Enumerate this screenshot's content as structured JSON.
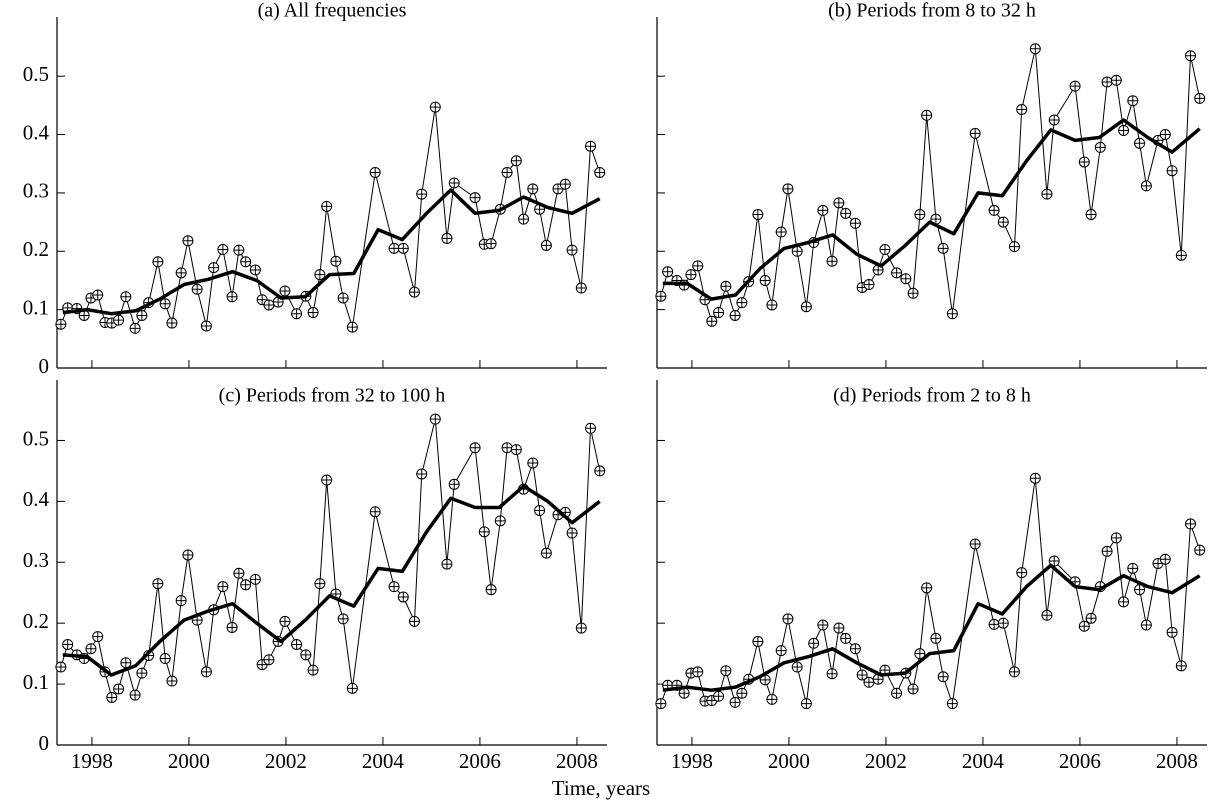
{
  "xlabel": "Time, years",
  "chart_data": [
    {
      "type": "line",
      "title": "(a) All frequencies",
      "xlim": [
        1997.28,
        2008.62
      ],
      "ylim": [
        0,
        0.55
      ],
      "xticks": [
        1998,
        2000,
        2002,
        2004,
        2006,
        2008
      ],
      "yticks": [
        0,
        0.1,
        0.2,
        0.3,
        0.4,
        0.5
      ],
      "xtick_labels": false,
      "ytick_labels": true,
      "series": [
        {
          "style": "markers",
          "color": "#000000",
          "x": [
            1997.36,
            1997.5,
            1997.69,
            1997.84,
            1997.98,
            1998.12,
            1998.27,
            1998.41,
            1998.55,
            1998.7,
            1998.89,
            1999.03,
            1999.17,
            1999.36,
            1999.51,
            1999.65,
            1999.84,
            1999.98,
            2000.17,
            2000.36,
            2000.51,
            2000.7,
            2000.89,
            2001.03,
            2001.17,
            2001.37,
            2001.51,
            2001.65,
            2001.84,
            2001.98,
            2002.22,
            2002.41,
            2002.56,
            2002.7,
            2002.84,
            2003.03,
            2003.18,
            2003.37,
            2003.84,
            2004.23,
            2004.42,
            2004.65,
            2004.8,
            2005.08,
            2005.32,
            2005.47,
            2005.9,
            2006.09,
            2006.23,
            2006.42,
            2006.56,
            2006.75,
            2006.9,
            2007.09,
            2007.23,
            2007.37,
            2007.61,
            2007.76,
            2007.9,
            2008.09,
            2008.28,
            2008.47
          ],
          "values": [
            0.075,
            0.103,
            0.102,
            0.09,
            0.12,
            0.125,
            0.078,
            0.077,
            0.082,
            0.122,
            0.068,
            0.09,
            0.112,
            0.182,
            0.11,
            0.077,
            0.163,
            0.218,
            0.135,
            0.072,
            0.172,
            0.203,
            0.122,
            0.202,
            0.182,
            0.168,
            0.117,
            0.108,
            0.113,
            0.132,
            0.093,
            0.123,
            0.095,
            0.16,
            0.277,
            0.183,
            0.12,
            0.07,
            0.335,
            0.205,
            0.205,
            0.13,
            0.298,
            0.447,
            0.222,
            0.317,
            0.292,
            0.212,
            0.213,
            0.272,
            0.335,
            0.355,
            0.255,
            0.307,
            0.272,
            0.21,
            0.307,
            0.315,
            0.202,
            0.137,
            0.38,
            0.335
          ]
        },
        {
          "style": "smooth",
          "color": "#000000",
          "x": [
            1997.4,
            1997.9,
            1998.4,
            1998.9,
            1999.4,
            1999.9,
            2000.4,
            2000.9,
            2001.4,
            2001.9,
            2002.4,
            2002.9,
            2003.4,
            2003.9,
            2004.4,
            2004.9,
            2005.4,
            2005.9,
            2006.4,
            2006.9,
            2007.4,
            2007.9,
            2008.47
          ],
          "values": [
            0.095,
            0.1,
            0.093,
            0.098,
            0.118,
            0.143,
            0.152,
            0.165,
            0.15,
            0.12,
            0.122,
            0.16,
            0.162,
            0.237,
            0.22,
            0.265,
            0.305,
            0.265,
            0.27,
            0.293,
            0.275,
            0.265,
            0.29
          ]
        }
      ]
    },
    {
      "type": "line",
      "title": "(b) Periods from 8 to 32 h",
      "xlim": [
        1997.28,
        2008.62
      ],
      "ylim": [
        0,
        0.55
      ],
      "xticks": [
        1998,
        2000,
        2002,
        2004,
        2006,
        2008
      ],
      "yticks": [
        0,
        0.1,
        0.2,
        0.3,
        0.4,
        0.5
      ],
      "xtick_labels": false,
      "ytick_labels": false,
      "series": [
        {
          "style": "markers",
          "color": "#000000",
          "x": [
            1997.36,
            1997.5,
            1997.69,
            1997.84,
            1997.98,
            1998.12,
            1998.27,
            1998.41,
            1998.55,
            1998.7,
            1998.89,
            1999.03,
            1999.17,
            1999.36,
            1999.51,
            1999.65,
            1999.84,
            1999.98,
            2000.17,
            2000.36,
            2000.51,
            2000.7,
            2000.89,
            2001.03,
            2001.17,
            2001.37,
            2001.51,
            2001.65,
            2001.84,
            2001.98,
            2002.22,
            2002.41,
            2002.56,
            2002.7,
            2002.84,
            2003.03,
            2003.18,
            2003.37,
            2003.84,
            2004.23,
            2004.42,
            2004.65,
            2004.8,
            2005.08,
            2005.32,
            2005.47,
            2005.9,
            2006.09,
            2006.23,
            2006.42,
            2006.56,
            2006.75,
            2006.9,
            2007.09,
            2007.23,
            2007.37,
            2007.61,
            2007.76,
            2007.9,
            2008.09,
            2008.28,
            2008.47
          ],
          "values": [
            0.123,
            0.165,
            0.15,
            0.142,
            0.16,
            0.175,
            0.117,
            0.08,
            0.095,
            0.14,
            0.09,
            0.112,
            0.148,
            0.263,
            0.15,
            0.108,
            0.233,
            0.307,
            0.2,
            0.105,
            0.215,
            0.27,
            0.183,
            0.283,
            0.265,
            0.248,
            0.138,
            0.143,
            0.168,
            0.203,
            0.163,
            0.153,
            0.128,
            0.263,
            0.433,
            0.255,
            0.205,
            0.093,
            0.402,
            0.27,
            0.25,
            0.208,
            0.443,
            0.547,
            0.298,
            0.425,
            0.483,
            0.353,
            0.263,
            0.378,
            0.49,
            0.493,
            0.407,
            0.458,
            0.385,
            0.312,
            0.39,
            0.4,
            0.338,
            0.193,
            0.535,
            0.462
          ]
        },
        {
          "style": "smooth",
          "color": "#000000",
          "x": [
            1997.4,
            1997.9,
            1998.4,
            1998.9,
            1999.4,
            1999.9,
            2000.4,
            2000.9,
            2001.4,
            2001.9,
            2002.4,
            2002.9,
            2003.4,
            2003.9,
            2004.4,
            2004.9,
            2005.4,
            2005.9,
            2006.4,
            2006.9,
            2007.4,
            2007.9,
            2008.47
          ],
          "values": [
            0.145,
            0.145,
            0.118,
            0.125,
            0.17,
            0.205,
            0.215,
            0.228,
            0.195,
            0.175,
            0.21,
            0.25,
            0.23,
            0.3,
            0.295,
            0.355,
            0.408,
            0.39,
            0.395,
            0.425,
            0.395,
            0.37,
            0.41
          ]
        }
      ]
    },
    {
      "type": "line",
      "title": "(c) Periods from 32 to 100 h",
      "xlim": [
        1997.28,
        2008.62
      ],
      "ylim": [
        0,
        0.55
      ],
      "xticks": [
        1998,
        2000,
        2002,
        2004,
        2006,
        2008
      ],
      "yticks": [
        0,
        0.1,
        0.2,
        0.3,
        0.4,
        0.5
      ],
      "xtick_labels": true,
      "ytick_labels": true,
      "series": [
        {
          "style": "markers",
          "color": "#000000",
          "x": [
            1997.36,
            1997.5,
            1997.69,
            1997.84,
            1997.98,
            1998.12,
            1998.27,
            1998.41,
            1998.55,
            1998.7,
            1998.89,
            1999.03,
            1999.17,
            1999.36,
            1999.51,
            1999.65,
            1999.84,
            1999.98,
            2000.17,
            2000.36,
            2000.51,
            2000.7,
            2000.89,
            2001.03,
            2001.17,
            2001.37,
            2001.51,
            2001.65,
            2001.84,
            2001.98,
            2002.22,
            2002.41,
            2002.56,
            2002.7,
            2002.84,
            2003.03,
            2003.18,
            2003.37,
            2003.84,
            2004.23,
            2004.42,
            2004.65,
            2004.8,
            2005.08,
            2005.32,
            2005.47,
            2005.9,
            2006.09,
            2006.23,
            2006.42,
            2006.56,
            2006.75,
            2006.9,
            2007.09,
            2007.23,
            2007.37,
            2007.61,
            2007.76,
            2007.9,
            2008.09,
            2008.28,
            2008.47
          ],
          "values": [
            0.128,
            0.165,
            0.148,
            0.142,
            0.158,
            0.178,
            0.12,
            0.078,
            0.092,
            0.135,
            0.082,
            0.118,
            0.147,
            0.265,
            0.142,
            0.105,
            0.237,
            0.312,
            0.205,
            0.12,
            0.222,
            0.26,
            0.193,
            0.282,
            0.263,
            0.272,
            0.132,
            0.14,
            0.17,
            0.203,
            0.165,
            0.148,
            0.123,
            0.265,
            0.435,
            0.248,
            0.207,
            0.093,
            0.383,
            0.26,
            0.243,
            0.203,
            0.445,
            0.535,
            0.297,
            0.428,
            0.488,
            0.35,
            0.255,
            0.368,
            0.488,
            0.485,
            0.42,
            0.463,
            0.385,
            0.315,
            0.378,
            0.382,
            0.348,
            0.192,
            0.52,
            0.45
          ]
        },
        {
          "style": "smooth",
          "color": "#000000",
          "x": [
            1997.4,
            1997.9,
            1998.4,
            1998.9,
            1999.4,
            1999.9,
            2000.4,
            2000.9,
            2001.4,
            2001.9,
            2002.4,
            2002.9,
            2003.4,
            2003.9,
            2004.4,
            2004.9,
            2005.4,
            2005.9,
            2006.4,
            2006.9,
            2007.4,
            2007.9,
            2008.47
          ],
          "values": [
            0.148,
            0.145,
            0.115,
            0.13,
            0.17,
            0.205,
            0.22,
            0.232,
            0.2,
            0.17,
            0.205,
            0.245,
            0.228,
            0.29,
            0.285,
            0.35,
            0.405,
            0.39,
            0.39,
            0.425,
            0.4,
            0.365,
            0.4
          ]
        }
      ]
    },
    {
      "type": "line",
      "title": "(d) Periods from 2 to 8 h",
      "xlim": [
        1997.28,
        2008.62
      ],
      "ylim": [
        0,
        0.55
      ],
      "xticks": [
        1998,
        2000,
        2002,
        2004,
        2006,
        2008
      ],
      "yticks": [
        0,
        0.1,
        0.2,
        0.3,
        0.4,
        0.5
      ],
      "xtick_labels": true,
      "ytick_labels": false,
      "series": [
        {
          "style": "markers",
          "color": "#000000",
          "x": [
            1997.36,
            1997.5,
            1997.69,
            1997.84,
            1997.98,
            1998.12,
            1998.27,
            1998.41,
            1998.55,
            1998.7,
            1998.89,
            1999.03,
            1999.17,
            1999.36,
            1999.51,
            1999.65,
            1999.84,
            1999.98,
            2000.17,
            2000.36,
            2000.51,
            2000.7,
            2000.89,
            2001.03,
            2001.17,
            2001.37,
            2001.51,
            2001.65,
            2001.84,
            2001.98,
            2002.22,
            2002.41,
            2002.56,
            2002.7,
            2002.84,
            2003.03,
            2003.18,
            2003.37,
            2003.84,
            2004.23,
            2004.42,
            2004.65,
            2004.8,
            2005.08,
            2005.32,
            2005.47,
            2005.9,
            2006.09,
            2006.23,
            2006.42,
            2006.56,
            2006.75,
            2006.9,
            2007.09,
            2007.23,
            2007.37,
            2007.61,
            2007.76,
            2007.9,
            2008.09,
            2008.28,
            2008.47
          ],
          "values": [
            0.068,
            0.098,
            0.098,
            0.085,
            0.118,
            0.12,
            0.072,
            0.073,
            0.08,
            0.122,
            0.07,
            0.085,
            0.108,
            0.17,
            0.107,
            0.075,
            0.155,
            0.207,
            0.128,
            0.068,
            0.167,
            0.197,
            0.117,
            0.192,
            0.175,
            0.158,
            0.115,
            0.103,
            0.108,
            0.123,
            0.085,
            0.118,
            0.092,
            0.15,
            0.258,
            0.175,
            0.112,
            0.068,
            0.33,
            0.198,
            0.2,
            0.12,
            0.283,
            0.438,
            0.213,
            0.302,
            0.268,
            0.195,
            0.208,
            0.26,
            0.318,
            0.34,
            0.235,
            0.29,
            0.255,
            0.197,
            0.298,
            0.305,
            0.185,
            0.13,
            0.363,
            0.32
          ]
        },
        {
          "style": "smooth",
          "color": "#000000",
          "x": [
            1997.4,
            1997.9,
            1998.4,
            1998.9,
            1999.4,
            1999.9,
            2000.4,
            2000.9,
            2001.4,
            2001.9,
            2002.4,
            2002.9,
            2003.4,
            2003.9,
            2004.4,
            2004.9,
            2005.4,
            2005.9,
            2006.4,
            2006.9,
            2007.4,
            2007.9,
            2008.47
          ],
          "values": [
            0.09,
            0.095,
            0.09,
            0.095,
            0.112,
            0.135,
            0.145,
            0.158,
            0.135,
            0.115,
            0.118,
            0.15,
            0.155,
            0.232,
            0.215,
            0.26,
            0.295,
            0.26,
            0.255,
            0.278,
            0.26,
            0.25,
            0.278
          ]
        }
      ]
    }
  ]
}
